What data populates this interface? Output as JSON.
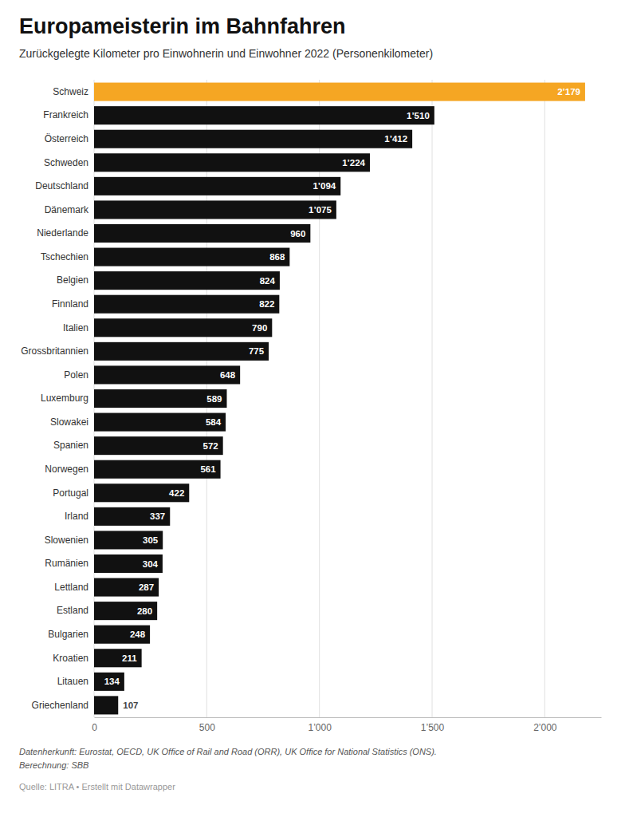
{
  "chart_data": {
    "type": "bar",
    "orientation": "horizontal",
    "title": "Europameisterin im Bahnfahren",
    "subtitle": "Zurückgelegte Kilometer pro Einwohnerin und Einwohner 2022 (Personenkilometer)",
    "annotations": [
      "Datenherkunft: Eurostat, OECD, UK Office of Rail and Road (ORR), UK Office for National Statistics (ONS).",
      "Berechnung: SBB",
      "Quelle: LITRA • Erstellt mit Datawrapper"
    ],
    "categories": [
      "Schweiz",
      "Frankreich",
      "Österreich",
      "Schweden",
      "Deutschland",
      "Dänemark",
      "Niederlande",
      "Tschechien",
      "Belgien",
      "Finnland",
      "Italien",
      "Grossbritannien",
      "Polen",
      "Luxemburg",
      "Slowakei",
      "Spanien",
      "Norwegen",
      "Portugal",
      "Irland",
      "Slowenien",
      "Rumänien",
      "Lettland",
      "Estland",
      "Bulgarien",
      "Kroatien",
      "Litauen",
      "Griechenland"
    ],
    "values": [
      2179,
      1510,
      1412,
      1224,
      1094,
      1075,
      960,
      868,
      824,
      822,
      790,
      775,
      648,
      589,
      584,
      572,
      561,
      422,
      337,
      305,
      304,
      287,
      280,
      248,
      211,
      134,
      107
    ],
    "value_labels": [
      "2’179",
      "1’510",
      "1’412",
      "1’224",
      "1’094",
      "1’075",
      "960",
      "868",
      "824",
      "822",
      "790",
      "775",
      "648",
      "589",
      "584",
      "572",
      "561",
      "422",
      "337",
      "305",
      "304",
      "287",
      "280",
      "248",
      "211",
      "134",
      "107"
    ],
    "data_labels": true,
    "colors": [
      "#F5A623",
      "#111111",
      "#111111",
      "#111111",
      "#111111",
      "#111111",
      "#111111",
      "#111111",
      "#111111",
      "#111111",
      "#111111",
      "#111111",
      "#111111",
      "#111111",
      "#111111",
      "#111111",
      "#111111",
      "#111111",
      "#111111",
      "#111111",
      "#111111",
      "#111111",
      "#111111",
      "#111111",
      "#111111",
      "#111111",
      "#111111"
    ],
    "xlim": [
      0,
      2250
    ],
    "xticks": [
      0,
      500,
      {
        "value": 1000,
        "label": "1’000"
      },
      {
        "value": 1500,
        "label": "1’500"
      },
      {
        "value": 2000,
        "label": "2’000"
      }
    ],
    "grid": true
  }
}
